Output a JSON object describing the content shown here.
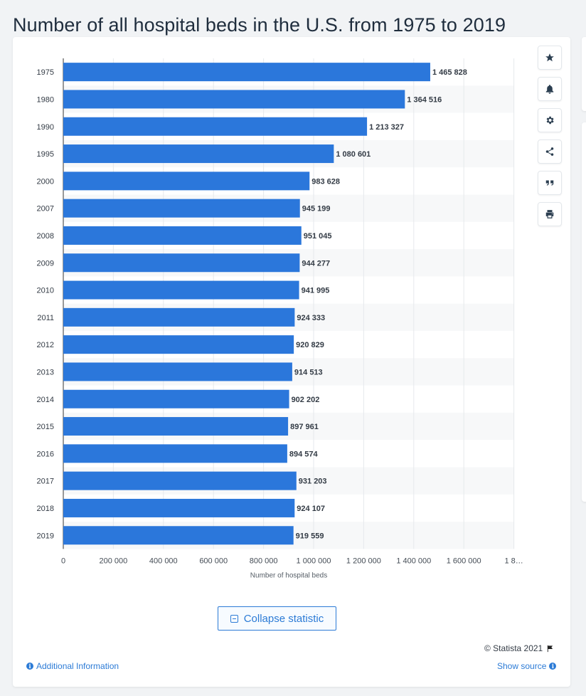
{
  "page": {
    "title": "Number of all hospital beds in the U.S. from 1975 to 2019"
  },
  "toolbar": {
    "icons": [
      "star-icon",
      "bell-icon",
      "gear-icon",
      "share-icon",
      "quote-icon",
      "print-icon"
    ]
  },
  "footer": {
    "collapse_label": "Collapse statistic",
    "copyright": "© Statista 2021",
    "additional_info": "Additional Information",
    "show_source": "Show source"
  },
  "colors": {
    "bar": "#2b77db",
    "stripe": "#f7f8f9",
    "accent": "#2c7bd6"
  },
  "chart_data": {
    "type": "bar",
    "orientation": "horizontal",
    "categories": [
      "1975",
      "1980",
      "1990",
      "1995",
      "2000",
      "2007",
      "2008",
      "2009",
      "2010",
      "2011",
      "2012",
      "2013",
      "2014",
      "2015",
      "2016",
      "2017",
      "2018",
      "2019"
    ],
    "values": [
      1465828,
      1364516,
      1213327,
      1080601,
      983628,
      945199,
      951045,
      944277,
      941995,
      924333,
      920829,
      914513,
      902202,
      897961,
      894574,
      931203,
      924107,
      919559
    ],
    "value_labels": [
      "1 465 828",
      "1 364 516",
      "1 213 327",
      "1 080 601",
      "983 628",
      "945 199",
      "951 045",
      "944 277",
      "941 995",
      "924 333",
      "920 829",
      "914 513",
      "902 202",
      "897 961",
      "894 574",
      "931 203",
      "924 107",
      "919 559"
    ],
    "xlabel": "Number of hospital beds",
    "ylabel": "",
    "xlim": [
      0,
      1800000
    ],
    "xticks": [
      0,
      200000,
      400000,
      600000,
      800000,
      1000000,
      1200000,
      1400000,
      1600000,
      1800000
    ],
    "xtick_labels": [
      "0",
      "200 000",
      "400 000",
      "600 000",
      "800 000",
      "1 000 000",
      "1 200 000",
      "1 400 000",
      "1 600 000",
      "1 8…"
    ],
    "grid": true
  }
}
